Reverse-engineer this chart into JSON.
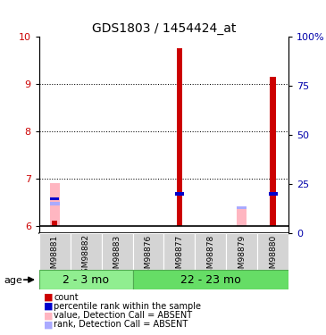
{
  "title": "GDS1803 / 1454424_at",
  "samples": [
    "GSM98881",
    "GSM98882",
    "GSM98883",
    "GSM98876",
    "GSM98877",
    "GSM98878",
    "GSM98879",
    "GSM98880"
  ],
  "groups": [
    {
      "label": "2 - 3 mo",
      "start": 0,
      "end": 2,
      "color": "#90EE90"
    },
    {
      "label": "22 - 23 mo",
      "start": 3,
      "end": 7,
      "color": "#66DD66"
    }
  ],
  "ylim_left": [
    5.85,
    10.0
  ],
  "ylim_right": [
    0,
    100
  ],
  "yticks_left": [
    6,
    7,
    8,
    9,
    10
  ],
  "yticks_right": [
    0,
    25,
    50,
    75,
    100
  ],
  "yticklabels_right": [
    "0",
    "25",
    "50",
    "75",
    "100%"
  ],
  "values_red": [
    6.1,
    null,
    null,
    null,
    9.75,
    null,
    null,
    9.15
  ],
  "values_pink": [
    6.9,
    null,
    null,
    null,
    null,
    null,
    6.4,
    null
  ],
  "rank_blue": [
    6.57,
    null,
    null,
    null,
    6.68,
    null,
    null,
    6.68
  ],
  "rank_lightblue": [
    6.47,
    null,
    null,
    null,
    null,
    null,
    6.38,
    null
  ],
  "color_red": "#CC0000",
  "color_pink": "#FFB6C1",
  "color_blue": "#0000CC",
  "color_lightblue": "#AAAAFF",
  "legend_items": [
    {
      "color": "#CC0000",
      "label": "count"
    },
    {
      "color": "#0000CC",
      "label": "percentile rank within the sample"
    },
    {
      "color": "#FFB6C1",
      "label": "value, Detection Call = ABSENT"
    },
    {
      "color": "#AAAAFF",
      "label": "rank, Detection Call = ABSENT"
    }
  ]
}
